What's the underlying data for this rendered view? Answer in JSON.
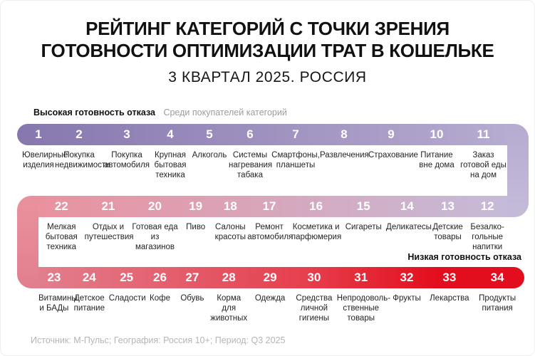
{
  "title": {
    "line1": "РЕЙТИНГ КАТЕГОРИЙ С ТОЧКИ ЗРЕНИЯ",
    "line2": "ГОТОВНОСТИ ОПТИМИЗАЦИИ ТРАТ В КОШЕЛЬКЕ",
    "subtitle": "3 КВАРТАЛ 2025. РОССИЯ"
  },
  "legend": {
    "high_label": "Высокая готовность отказа",
    "audience_note": "Среди покупателей категорий",
    "low_label": "Низкая готовность отказа"
  },
  "footer": "Источник: М-Пульс; География: Россия 10+; Период: Q3 2025",
  "colors": {
    "purple_start": "#8677ae",
    "purple_end": "#b6abd0",
    "lavender_end": "#c5bbd9",
    "pink_start": "#e9929e",
    "pink_dark": "#e27e8d",
    "red_end": "#e30e1d"
  },
  "chart_data": {
    "type": "table",
    "title": "РЕЙТИНГ КАТЕГОРИЙ С ТОЧКИ ЗРЕНИЯ ГОТОВНОСТИ ОПТИМИЗАЦИИ ТРАТ В КОШЕЛЬКЕ",
    "subtitle": "3 КВАРТАЛ 2025. РОССИЯ",
    "scale_note": "1 = высокая готовность отказа, 34 = низкая готовность отказа",
    "layout_hint": "snake: ranks 1-11 left-to-right, 12-22 right-to-left, 23-34 left-to-right",
    "ranking": [
      {
        "rank": 1,
        "category": "Ювелирные изделия"
      },
      {
        "rank": 2,
        "category": "Покупка недвижимости"
      },
      {
        "rank": 3,
        "category": "Покупка автомобиля"
      },
      {
        "rank": 4,
        "category": "Крупная бытовая техника"
      },
      {
        "rank": 5,
        "category": "Алкоголь"
      },
      {
        "rank": 6,
        "category": "Системы нагревания табака"
      },
      {
        "rank": 7,
        "category": "Смартфоны, планшеты"
      },
      {
        "rank": 8,
        "category": "Развлечения"
      },
      {
        "rank": 9,
        "category": "Страхование"
      },
      {
        "rank": 10,
        "category": "Питание вне дома"
      },
      {
        "rank": 11,
        "category": "Заказ готовой еды на дом"
      },
      {
        "rank": 12,
        "category": "Безалко-гольные напитки"
      },
      {
        "rank": 13,
        "category": "Детские товары"
      },
      {
        "rank": 14,
        "category": "Деликатесы"
      },
      {
        "rank": 15,
        "category": "Сигареты"
      },
      {
        "rank": 16,
        "category": "Косметика и парфюмерия"
      },
      {
        "rank": 17,
        "category": "Ремонт автомобиля"
      },
      {
        "rank": 18,
        "category": "Салоны красоты"
      },
      {
        "rank": 19,
        "category": "Пиво"
      },
      {
        "rank": 20,
        "category": "Готовая еда из магазинов"
      },
      {
        "rank": 21,
        "category": "Отдых и путешествия"
      },
      {
        "rank": 22,
        "category": "Мелкая бытовая техника"
      },
      {
        "rank": 23,
        "category": "Витамины и БАДы"
      },
      {
        "rank": 24,
        "category": "Детское питание"
      },
      {
        "rank": 25,
        "category": "Сладости"
      },
      {
        "rank": 26,
        "category": "Кофе"
      },
      {
        "rank": 27,
        "category": "Обувь"
      },
      {
        "rank": 28,
        "category": "Корма для животных"
      },
      {
        "rank": 29,
        "category": "Одежда"
      },
      {
        "rank": 30,
        "category": "Средства личной гигиены"
      },
      {
        "rank": 31,
        "category": "Непродоволь-ственные товары"
      },
      {
        "rank": 32,
        "category": "Фрукты"
      },
      {
        "rank": 33,
        "category": "Лекарства"
      },
      {
        "rank": 34,
        "category": "Продукты питания"
      }
    ]
  }
}
